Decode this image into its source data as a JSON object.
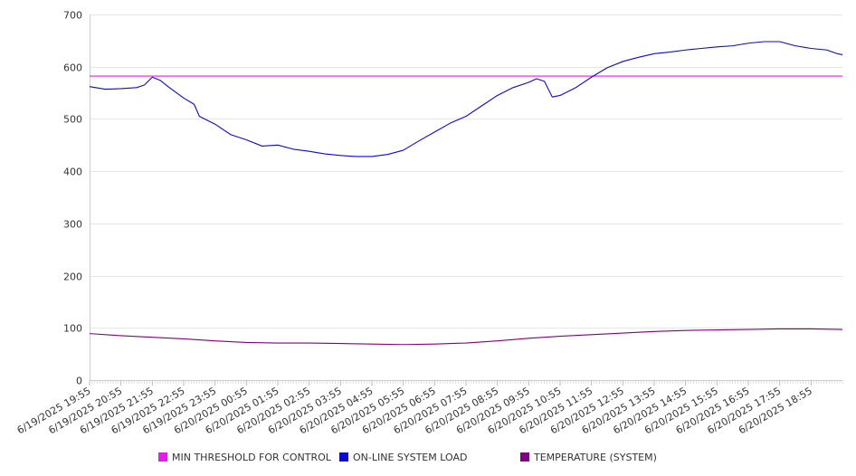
{
  "chart_data": {
    "type": "line",
    "title": "",
    "xlabel": "",
    "ylabel": "",
    "ylim": [
      0,
      700
    ],
    "yticks": [
      0,
      100,
      200,
      300,
      400,
      500,
      600,
      700
    ],
    "grid": "horizontal",
    "legend_position": "bottom",
    "x_tick_labels": [
      "6/19/2025 19:55",
      "6/19/2025 20:55",
      "6/19/2025 21:55",
      "6/19/2025 22:55",
      "6/19/2025 23:55",
      "6/20/2025 00:55",
      "6/20/2025 01:55",
      "6/20/2025 02:55",
      "6/20/2025 03:55",
      "6/20/2025 04:55",
      "6/20/2025 05:55",
      "6/20/2025 06:55",
      "6/20/2025 07:55",
      "6/20/2025 08:55",
      "6/20/2025 09:55",
      "6/20/2025 10:55",
      "6/20/2025 11:55",
      "6/20/2025 12:55",
      "6/20/2025 13:55",
      "6/20/2025 14:55",
      "6/20/2025 15:55",
      "6/20/2025 16:55",
      "6/20/2025 17:55",
      "6/20/2025 18:55"
    ],
    "x_end": "6/20/2025 19:55",
    "series": [
      {
        "name": "MIN THRESHOLD FOR CONTROL",
        "color": "#e020e0",
        "x": [
          "6/19/2025 19:55",
          "6/20/2025 19:55"
        ],
        "y": [
          582,
          582
        ]
      },
      {
        "name": "ON-LINE SYSTEM LOAD",
        "color": "#0a0ad0",
        "x": [
          "6/19/2025 19:55",
          "6/19/2025 20:25",
          "6/19/2025 20:55",
          "6/19/2025 21:25",
          "6/19/2025 21:40",
          "6/19/2025 21:55",
          "6/19/2025 22:10",
          "6/19/2025 22:25",
          "6/19/2025 22:55",
          "6/19/2025 23:15",
          "6/19/2025 23:25",
          "6/19/2025 23:55",
          "6/20/2025 00:25",
          "6/20/2025 00:55",
          "6/20/2025 01:25",
          "6/20/2025 01:55",
          "6/20/2025 02:25",
          "6/20/2025 02:55",
          "6/20/2025 03:25",
          "6/20/2025 03:55",
          "6/20/2025 04:25",
          "6/20/2025 04:55",
          "6/20/2025 05:25",
          "6/20/2025 05:55",
          "6/20/2025 06:25",
          "6/20/2025 06:55",
          "6/20/2025 07:25",
          "6/20/2025 07:55",
          "6/20/2025 08:25",
          "6/20/2025 08:55",
          "6/20/2025 09:25",
          "6/20/2025 09:55",
          "6/20/2025 10:10",
          "6/20/2025 10:25",
          "6/20/2025 10:40",
          "6/20/2025 10:55",
          "6/20/2025 11:25",
          "6/20/2025 11:55",
          "6/20/2025 12:25",
          "6/20/2025 12:55",
          "6/20/2025 13:25",
          "6/20/2025 13:55",
          "6/20/2025 14:25",
          "6/20/2025 14:55",
          "6/20/2025 15:25",
          "6/20/2025 15:55",
          "6/20/2025 16:25",
          "6/20/2025 16:55",
          "6/20/2025 17:25",
          "6/20/2025 17:55",
          "6/20/2025 18:25",
          "6/20/2025 18:55",
          "6/20/2025 19:25",
          "6/20/2025 19:45",
          "6/20/2025 19:55"
        ],
        "y": [
          562,
          557,
          558,
          560,
          565,
          580,
          574,
          562,
          540,
          528,
          505,
          490,
          470,
          460,
          448,
          450,
          442,
          438,
          433,
          430,
          428,
          428,
          432,
          440,
          458,
          475,
          492,
          505,
          525,
          545,
          560,
          570,
          577,
          572,
          542,
          545,
          560,
          580,
          598,
          610,
          618,
          625,
          628,
          632,
          635,
          638,
          640,
          645,
          648,
          648,
          640,
          635,
          632,
          625,
          623
        ]
      },
      {
        "name": "TEMPERATURE (SYSTEM)",
        "color": "#800080",
        "x": [
          "6/19/2025 19:55",
          "6/19/2025 20:55",
          "6/19/2025 21:55",
          "6/19/2025 22:55",
          "6/19/2025 23:55",
          "6/20/2025 00:55",
          "6/20/2025 01:55",
          "6/20/2025 02:55",
          "6/20/2025 03:55",
          "6/20/2025 04:55",
          "6/20/2025 05:55",
          "6/20/2025 06:55",
          "6/20/2025 07:55",
          "6/20/2025 08:55",
          "6/20/2025 09:55",
          "6/20/2025 10:55",
          "6/20/2025 11:55",
          "6/20/2025 12:55",
          "6/20/2025 13:55",
          "6/20/2025 14:55",
          "6/20/2025 15:55",
          "6/20/2025 16:55",
          "6/20/2025 17:55",
          "6/20/2025 18:55",
          "6/20/2025 19:55"
        ],
        "y": [
          89,
          85,
          82,
          79,
          75,
          72,
          71,
          71,
          70,
          69,
          68,
          69,
          71,
          75,
          80,
          84,
          87,
          90,
          93,
          95,
          96,
          97,
          98,
          98,
          97
        ]
      }
    ]
  }
}
